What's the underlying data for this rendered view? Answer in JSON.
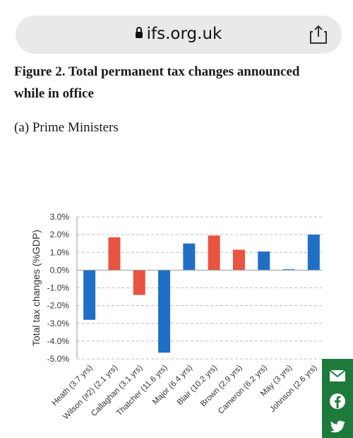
{
  "browser": {
    "url": "ifs.org.uk"
  },
  "figure": {
    "title": "Figure 2. Total permanent tax changes announced while in office",
    "subtitle": "(a) Prime Ministers"
  },
  "social": {
    "icons": [
      "mail-icon",
      "facebook-icon",
      "twitter-icon"
    ]
  },
  "chart_data": {
    "type": "bar",
    "ylabel": "Total tax changes (%GDP)",
    "ylim": [
      -5.0,
      3.0
    ],
    "yticks": [
      "3.0%",
      "2.0%",
      "1.0%",
      "0.0%",
      "-1.0%",
      "-2.0%",
      "-3.0%",
      "-4.0%",
      "-5.0%"
    ],
    "categories": [
      "Heath (3.7 yrs)",
      "Wilson (#2) (2.1 yrs)",
      "Callaghan (3.1 yrs)",
      "Thatcher (11.6 yrs)",
      "Major (6.4 yrs)",
      "Blair (10.2 yrs)",
      "Brown (2.9 yrs)",
      "Cameron (6.2 yrs)",
      "May (3 yrs)",
      "Johnson (2.6 yrs)"
    ],
    "values": [
      -2.8,
      1.85,
      -1.4,
      -4.65,
      1.5,
      1.95,
      1.15,
      1.05,
      0.05,
      2.0
    ],
    "colors": [
      "#1f6fc5",
      "#e8543f",
      "#e8543f",
      "#1f6fc5",
      "#1f6fc5",
      "#e8543f",
      "#e8543f",
      "#1f6fc5",
      "#1f6fc5",
      "#1f6fc5"
    ],
    "grid": true
  }
}
